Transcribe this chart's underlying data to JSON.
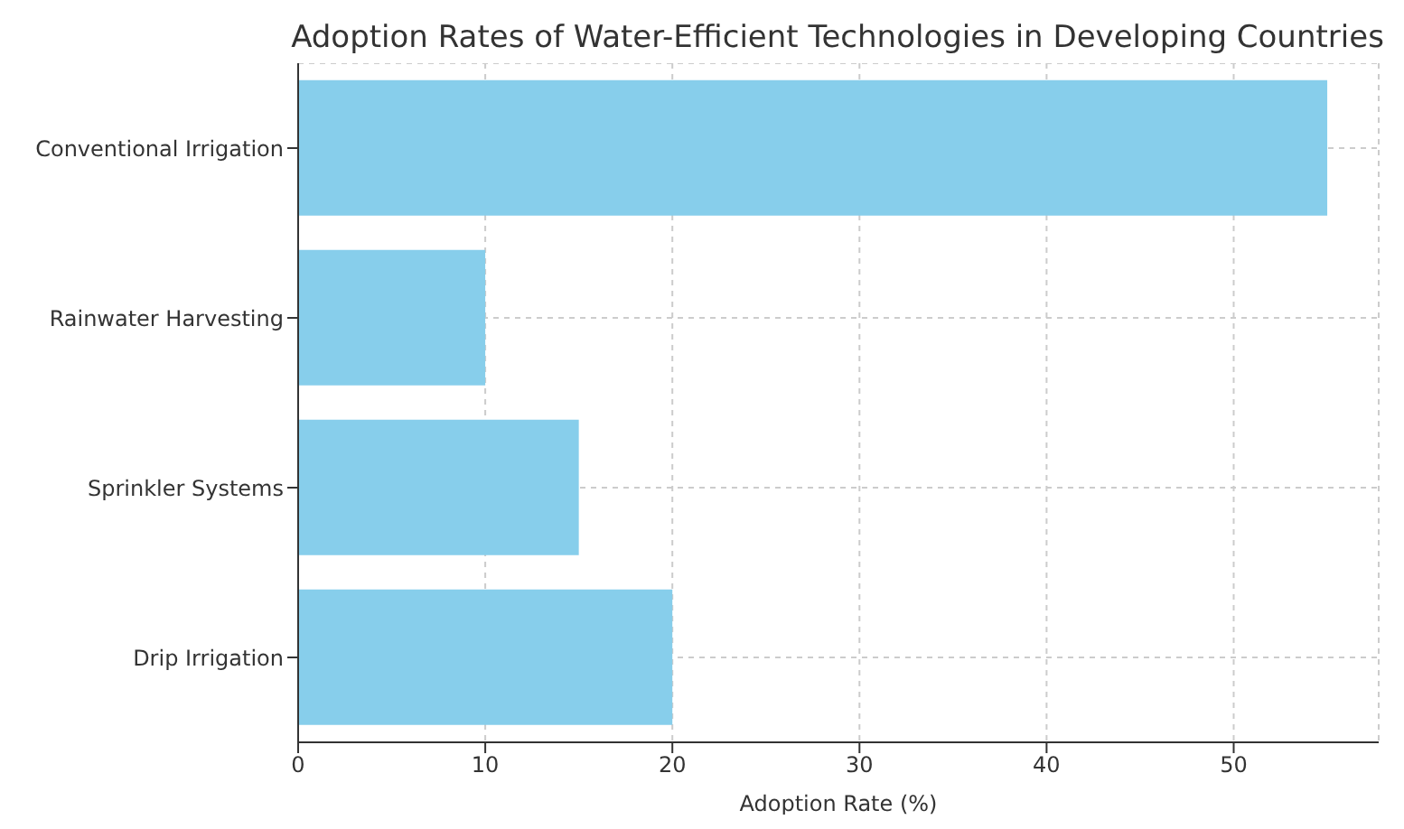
{
  "chart_data": {
    "type": "bar",
    "orientation": "horizontal",
    "title": "Adoption Rates of Water-Efficient Technologies in Developing Countries",
    "xlabel": "Adoption Rate (%)",
    "categories": [
      "Conventional Irrigation",
      "Rainwater Harvesting",
      "Sprinkler Systems",
      "Drip Irrigation"
    ],
    "values": [
      55,
      10,
      15,
      20
    ],
    "color": "#87ceeb",
    "xlim": [
      0,
      57.75
    ],
    "xticks": [
      0,
      10,
      20,
      30,
      40,
      50
    ],
    "grid": true
  }
}
